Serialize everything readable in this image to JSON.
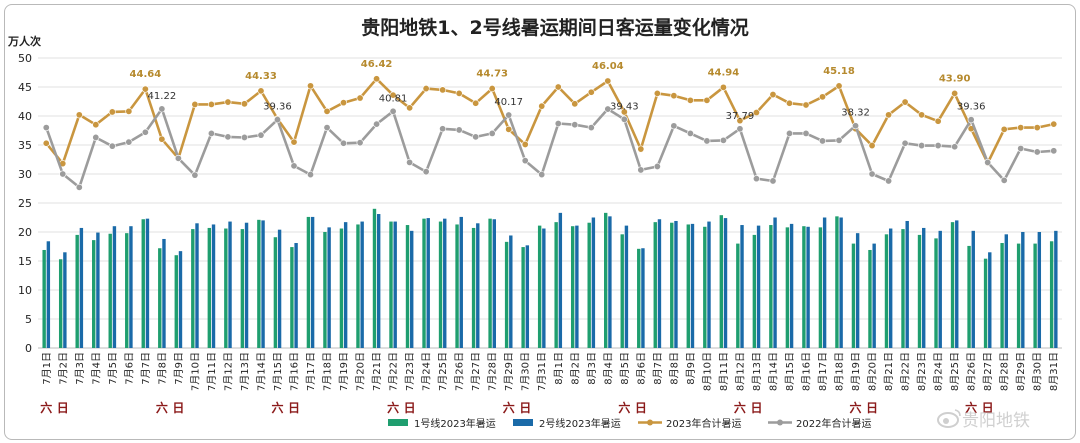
{
  "chart_data": {
    "type": "bar+line",
    "title": "贵阳地铁1、2号线暑运期间日客运量变化情况",
    "ylabel": "万人次",
    "ylim": [
      0,
      50
    ],
    "yticks": [
      "0",
      "5",
      "10",
      "15",
      "20",
      "25",
      "30",
      "35",
      "40",
      "45",
      "50"
    ],
    "grid": true,
    "legend_position": "bottom",
    "categories": [
      "7月1日",
      "7月2日",
      "7月3日",
      "7月4日",
      "7月5日",
      "7月6日",
      "7月7日",
      "7月8日",
      "7月9日",
      "7月10日",
      "7月11日",
      "7月12日",
      "7月13日",
      "7月14日",
      "7月15日",
      "7月16日",
      "7月17日",
      "7月18日",
      "7月19日",
      "7月20日",
      "7月21日",
      "7月22日",
      "7月23日",
      "7月24日",
      "7月25日",
      "7月26日",
      "7月27日",
      "7月28日",
      "7月29日",
      "7月30日",
      "7月31日",
      "8月1日",
      "8月2日",
      "8月3日",
      "8月4日",
      "8月5日",
      "8月6日",
      "8月7日",
      "8月8日",
      "8月9日",
      "8月10日",
      "8月11日",
      "8月12日",
      "8月13日",
      "8月14日",
      "8月15日",
      "8月16日",
      "8月17日",
      "8月18日",
      "8月19日",
      "8月20日",
      "8月21日",
      "8月22日",
      "8月23日",
      "8月24日",
      "8月25日",
      "8月26日",
      "8月27日",
      "8月28日",
      "8月29日",
      "8月30日",
      "8月31日"
    ],
    "weekday_marks": [
      {
        "index": 0,
        "sat": "六",
        "sun": "日"
      },
      {
        "index": 7,
        "sat": "六",
        "sun": "日"
      },
      {
        "index": 14,
        "sat": "六",
        "sun": "日"
      },
      {
        "index": 21,
        "sat": "六",
        "sun": "日"
      },
      {
        "index": 28,
        "sat": "六",
        "sun": "日"
      },
      {
        "index": 35,
        "sat": "六",
        "sun": "日"
      },
      {
        "index": 42,
        "sat": "六",
        "sun": "日"
      },
      {
        "index": 49,
        "sat": "六",
        "sun": "日"
      },
      {
        "index": 56,
        "sat": "六",
        "sun": "日"
      }
    ],
    "series": [
      {
        "name": "1号线2023年暑运",
        "type": "bar",
        "color": "#1f9e6f",
        "values": [
          16.9,
          15.3,
          19.5,
          18.6,
          19.7,
          19.8,
          22.2,
          17.2,
          16.0,
          20.5,
          20.7,
          20.6,
          20.5,
          22.1,
          19.1,
          17.4,
          22.6,
          20.0,
          20.6,
          21.3,
          24.0,
          21.8,
          21.2,
          22.3,
          21.8,
          21.3,
          20.7,
          22.3,
          18.3,
          17.4,
          21.1,
          21.7,
          21.0,
          21.6,
          23.3,
          19.6,
          17.1,
          21.7,
          21.6,
          21.3,
          20.9,
          22.9,
          18.0,
          19.5,
          21.2,
          20.8,
          21.0,
          20.8,
          22.7,
          18.0,
          16.9,
          19.6,
          20.5,
          19.5,
          18.9,
          21.7,
          17.6,
          15.4,
          18.1,
          18.0,
          18.0,
          18.4
        ]
      },
      {
        "name": "2号线2023年暑运",
        "type": "bar",
        "color": "#1a6aa8",
        "values": [
          18.4,
          16.5,
          20.7,
          19.9,
          21.0,
          21.0,
          22.3,
          18.8,
          16.7,
          21.5,
          21.3,
          21.8,
          21.6,
          22.0,
          20.4,
          18.1,
          22.6,
          20.8,
          21.7,
          21.8,
          23.1,
          21.8,
          20.2,
          22.4,
          22.3,
          22.6,
          21.5,
          22.2,
          19.4,
          17.7,
          20.6,
          23.3,
          21.1,
          22.5,
          22.7,
          21.1,
          17.2,
          22.2,
          21.9,
          21.4,
          21.8,
          22.4,
          21.2,
          21.1,
          22.5,
          21.4,
          20.9,
          22.5,
          22.5,
          19.8,
          18.0,
          20.6,
          21.9,
          20.7,
          20.2,
          22.0,
          20.2,
          16.5,
          19.6,
          20.0,
          20.0,
          20.2
        ]
      },
      {
        "name": "2023年合计暑运",
        "type": "line",
        "color": "#c9963f",
        "values": [
          35.3,
          31.8,
          40.2,
          38.5,
          40.7,
          40.8,
          44.64,
          36.0,
          32.7,
          42.0,
          42.0,
          42.4,
          42.1,
          44.33,
          39.5,
          35.5,
          45.2,
          40.8,
          42.3,
          43.1,
          46.42,
          43.6,
          41.4,
          44.73,
          44.5,
          43.9,
          42.2,
          44.73,
          37.7,
          35.1,
          41.7,
          45.0,
          42.1,
          44.1,
          46.04,
          40.7,
          34.3,
          43.9,
          43.5,
          42.7,
          42.7,
          44.94,
          39.2,
          40.6,
          43.7,
          42.2,
          41.9,
          43.3,
          45.18,
          37.8,
          34.9,
          40.2,
          42.4,
          40.2,
          39.1,
          43.9,
          37.8,
          31.9,
          37.7,
          38.0,
          38.0,
          38.6
        ]
      },
      {
        "name": "2022年合计暑运",
        "type": "line",
        "color": "#9c9c9c",
        "values": [
          38.0,
          30.0,
          27.7,
          36.3,
          34.8,
          35.5,
          37.2,
          41.22,
          32.7,
          29.8,
          37.0,
          36.4,
          36.3,
          36.7,
          39.36,
          31.4,
          29.9,
          38.0,
          35.3,
          35.4,
          38.6,
          40.81,
          32.0,
          30.4,
          37.8,
          37.6,
          36.4,
          37.0,
          40.17,
          32.3,
          29.9,
          38.7,
          38.5,
          38.0,
          41.2,
          39.43,
          30.7,
          31.3,
          38.3,
          37.0,
          35.7,
          35.8,
          37.79,
          29.2,
          28.8,
          37.0,
          37.0,
          35.7,
          35.8,
          38.32,
          30.0,
          28.8,
          35.3,
          34.9,
          34.9,
          34.7,
          39.36,
          32.0,
          28.9,
          34.4,
          33.8,
          34.0
        ]
      }
    ],
    "annotations_2023": [
      {
        "index": 6,
        "label": "44.64"
      },
      {
        "index": 13,
        "label": "44.33"
      },
      {
        "index": 20,
        "label": "46.42"
      },
      {
        "index": 27,
        "label": "44.73"
      },
      {
        "index": 34,
        "label": "46.04"
      },
      {
        "index": 41,
        "label": "44.94"
      },
      {
        "index": 48,
        "label": "45.18"
      },
      {
        "index": 55,
        "label": "43.90"
      }
    ],
    "annotations_2022": [
      {
        "index": 7,
        "label": "41.22"
      },
      {
        "index": 14,
        "label": "39.36"
      },
      {
        "index": 21,
        "label": "40.81"
      },
      {
        "index": 28,
        "label": "40.17"
      },
      {
        "index": 35,
        "label": "39.43"
      },
      {
        "index": 42,
        "label": "37.79"
      },
      {
        "index": 49,
        "label": "38.32"
      },
      {
        "index": 56,
        "label": "39.36"
      }
    ]
  },
  "watermark": "贵阳地铁",
  "watermark_icon": "weibo-icon"
}
